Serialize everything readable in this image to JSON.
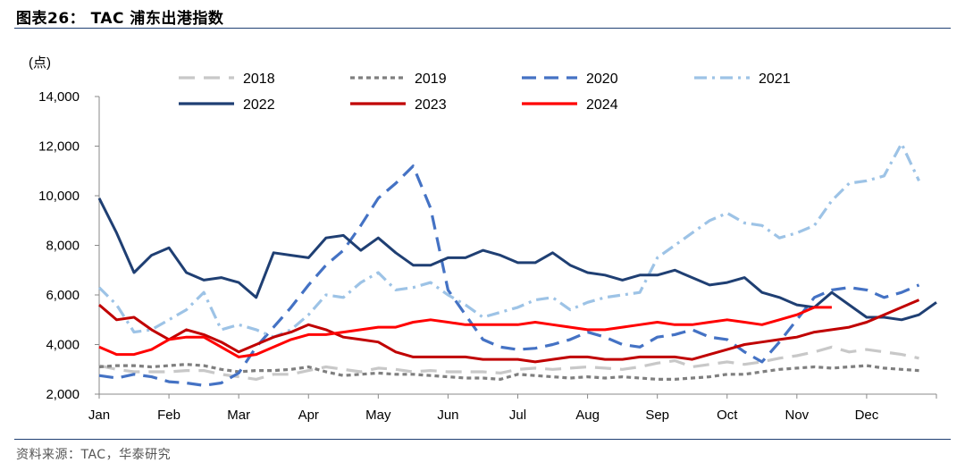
{
  "header": {
    "title": "图表26： TAC 浦东出港指数"
  },
  "footer": {
    "source": "资料来源：TAC，华泰研究"
  },
  "chart_data": {
    "type": "line",
    "unit_label": "(点)",
    "ylim": [
      2000,
      14000
    ],
    "yticks": [
      2000,
      4000,
      6000,
      8000,
      10000,
      12000,
      14000
    ],
    "ytick_labels": [
      "2,000",
      "4,000",
      "6,000",
      "8,000",
      "10,000",
      "12,000",
      "14,000"
    ],
    "x_range": [
      0,
      12
    ],
    "months": [
      "Jan",
      "Feb",
      "Mar",
      "Apr",
      "May",
      "Jun",
      "Jul",
      "Aug",
      "Sep",
      "Oct",
      "Nov",
      "Dec"
    ],
    "grid": false,
    "legend_position": "top",
    "series": [
      {
        "name": "2018",
        "color": "#c8c8c8",
        "dash": "long-dash",
        "x": [
          0,
          0.25,
          0.5,
          0.75,
          1,
          1.25,
          1.5,
          1.75,
          2,
          2.25,
          2.5,
          2.75,
          3,
          3.25,
          3.5,
          3.75,
          4,
          4.25,
          4.5,
          4.75,
          5,
          5.25,
          5.5,
          5.75,
          6,
          6.25,
          6.5,
          6.75,
          7,
          7.25,
          7.5,
          7.75,
          8,
          8.25,
          8.5,
          8.75,
          9,
          9.25,
          9.5,
          9.75,
          10,
          10.25,
          10.5,
          10.75,
          11,
          11.25,
          11.5,
          11.75
        ],
        "values": [
          3150,
          3000,
          2900,
          2900,
          2900,
          2950,
          2950,
          2800,
          2700,
          2600,
          2800,
          2800,
          2950,
          3100,
          3000,
          2900,
          3050,
          3000,
          2900,
          2950,
          2900,
          2900,
          2900,
          2850,
          3000,
          3050,
          3000,
          3050,
          3100,
          3050,
          3000,
          3100,
          3250,
          3350,
          3100,
          3200,
          3300,
          3200,
          3300,
          3450,
          3550,
          3700,
          3900,
          3700,
          3800,
          3700,
          3600,
          3450
        ]
      },
      {
        "name": "2019",
        "color": "#7f7f7f",
        "dash": "short-dash",
        "x": [
          0,
          0.25,
          0.5,
          0.75,
          1,
          1.25,
          1.5,
          1.75,
          2,
          2.25,
          2.5,
          2.75,
          3,
          3.25,
          3.5,
          3.75,
          4,
          4.25,
          4.5,
          4.75,
          5,
          5.25,
          5.5,
          5.75,
          6,
          6.25,
          6.5,
          6.75,
          7,
          7.25,
          7.5,
          7.75,
          8,
          8.25,
          8.5,
          8.75,
          9,
          9.25,
          9.5,
          9.75,
          10,
          10.25,
          10.5,
          10.75,
          11,
          11.25,
          11.5,
          11.75
        ],
        "values": [
          3100,
          3150,
          3150,
          3100,
          3150,
          3200,
          3150,
          3000,
          2900,
          2950,
          2950,
          3000,
          3100,
          2900,
          2750,
          2800,
          2850,
          2800,
          2800,
          2750,
          2700,
          2650,
          2650,
          2600,
          2800,
          2750,
          2700,
          2650,
          2700,
          2650,
          2700,
          2650,
          2600,
          2600,
          2650,
          2700,
          2800,
          2800,
          2900,
          3000,
          3050,
          3100,
          3050,
          3100,
          3150,
          3050,
          3000,
          2950
        ]
      },
      {
        "name": "2020",
        "color": "#4472c4",
        "dash": "dash",
        "x": [
          0,
          0.25,
          0.5,
          0.75,
          1,
          1.25,
          1.5,
          1.75,
          2,
          2.25,
          2.5,
          2.75,
          3,
          3.25,
          3.5,
          3.75,
          4,
          4.25,
          4.5,
          4.75,
          5,
          5.25,
          5.5,
          5.75,
          6,
          6.25,
          6.5,
          6.75,
          7,
          7.25,
          7.5,
          7.75,
          8,
          8.25,
          8.5,
          8.75,
          9,
          9.25,
          9.5,
          9.75,
          10,
          10.25,
          10.5,
          10.75,
          11,
          11.25,
          11.5,
          11.75
        ],
        "values": [
          2750,
          2650,
          2800,
          2700,
          2500,
          2450,
          2350,
          2450,
          2850,
          3900,
          4700,
          5500,
          6400,
          7200,
          7800,
          8800,
          9900,
          10500,
          11200,
          9500,
          6200,
          5200,
          4200,
          3900,
          3800,
          3850,
          4000,
          4200,
          4500,
          4300,
          4000,
          3900,
          4300,
          4400,
          4600,
          4300,
          4200,
          3700,
          3300,
          4100,
          5000,
          5900,
          6200,
          6300,
          6200,
          5900,
          6100,
          6400
        ]
      },
      {
        "name": "2021",
        "color": "#9dc3e6",
        "dash": "dash-dot",
        "x": [
          0,
          0.25,
          0.5,
          0.75,
          1,
          1.25,
          1.5,
          1.75,
          2,
          2.25,
          2.5,
          2.75,
          3,
          3.25,
          3.5,
          3.75,
          4,
          4.25,
          4.5,
          4.75,
          5,
          5.25,
          5.5,
          5.75,
          6,
          6.25,
          6.5,
          6.75,
          7,
          7.25,
          7.5,
          7.75,
          8,
          8.25,
          8.5,
          8.75,
          9,
          9.25,
          9.5,
          9.75,
          10,
          10.25,
          10.5,
          10.75,
          11,
          11.25,
          11.5,
          11.75
        ],
        "values": [
          6300,
          5600,
          4500,
          4600,
          5000,
          5400,
          6100,
          4600,
          4800,
          4600,
          4300,
          4600,
          5200,
          6000,
          5900,
          6500,
          6900,
          6200,
          6300,
          6500,
          6000,
          5600,
          5100,
          5300,
          5500,
          5800,
          5900,
          5400,
          5700,
          5900,
          6000,
          6100,
          7500,
          8000,
          8500,
          9000,
          9300,
          8900,
          8800,
          8300,
          8500,
          8800,
          9800,
          10500,
          10600,
          10800,
          12100,
          10600
        ]
      },
      {
        "name": "2022",
        "color": "#1f3f73",
        "dash": "solid",
        "x": [
          0,
          0.25,
          0.5,
          0.75,
          1,
          1.25,
          1.5,
          1.75,
          2,
          2.25,
          2.5,
          2.75,
          3,
          3.25,
          3.5,
          3.75,
          4,
          4.25,
          4.5,
          4.75,
          5,
          5.25,
          5.5,
          5.75,
          6,
          6.25,
          6.5,
          6.75,
          7,
          7.25,
          7.5,
          7.75,
          8,
          8.25,
          8.5,
          8.75,
          9,
          9.25,
          9.5,
          9.75,
          10,
          10.25,
          10.5,
          10.75,
          11,
          11.25,
          11.5,
          11.75,
          12
        ],
        "values": [
          9900,
          8500,
          6900,
          7600,
          7900,
          6900,
          6600,
          6700,
          6500,
          5900,
          7700,
          7600,
          7500,
          8300,
          8400,
          7800,
          8300,
          7700,
          7200,
          7200,
          7500,
          7500,
          7800,
          7600,
          7300,
          7300,
          7700,
          7200,
          6900,
          6800,
          6600,
          6800,
          6800,
          7000,
          6700,
          6400,
          6500,
          6700,
          6100,
          5900,
          5600,
          5500,
          6100,
          5600,
          5100,
          5100,
          5000,
          5200,
          5700
        ]
      },
      {
        "name": "2023",
        "color": "#c00000",
        "dash": "solid",
        "x": [
          0,
          0.25,
          0.5,
          0.75,
          1,
          1.25,
          1.5,
          1.75,
          2,
          2.25,
          2.5,
          2.75,
          3,
          3.25,
          3.5,
          3.75,
          4,
          4.25,
          4.5,
          4.75,
          5,
          5.25,
          5.5,
          5.75,
          6,
          6.25,
          6.5,
          6.75,
          7,
          7.25,
          7.5,
          7.75,
          8,
          8.25,
          8.5,
          8.75,
          9,
          9.25,
          9.5,
          9.75,
          10,
          10.25,
          10.5,
          10.75,
          11,
          11.25,
          11.5,
          11.75
        ],
        "values": [
          5600,
          5000,
          5100,
          4600,
          4200,
          4600,
          4400,
          4100,
          3700,
          4000,
          4300,
          4500,
          4800,
          4600,
          4300,
          4200,
          4100,
          3700,
          3500,
          3500,
          3500,
          3500,
          3400,
          3400,
          3400,
          3300,
          3400,
          3500,
          3500,
          3400,
          3400,
          3500,
          3500,
          3500,
          3400,
          3600,
          3800,
          4000,
          4100,
          4200,
          4300,
          4500,
          4600,
          4700,
          4900,
          5200,
          5500,
          5800
        ]
      },
      {
        "name": "2024",
        "color": "#ff0000",
        "dash": "solid",
        "x": [
          0,
          0.25,
          0.5,
          0.75,
          1,
          1.25,
          1.5,
          1.75,
          2,
          2.25,
          2.5,
          2.75,
          3,
          3.25,
          3.5,
          3.75,
          4,
          4.25,
          4.5,
          4.75,
          5,
          5.25,
          5.5,
          5.75,
          6,
          6.25,
          6.5,
          6.75,
          7,
          7.25,
          7.5,
          7.75,
          8,
          8.25,
          8.5,
          8.75,
          9,
          9.25,
          9.5,
          9.75,
          10,
          10.25,
          10.5
        ],
        "values": [
          3900,
          3600,
          3600,
          3800,
          4200,
          4300,
          4300,
          3900,
          3500,
          3600,
          3900,
          4200,
          4400,
          4400,
          4500,
          4600,
          4700,
          4700,
          4900,
          5000,
          4900,
          4800,
          4800,
          4800,
          4800,
          4900,
          4800,
          4700,
          4600,
          4600,
          4700,
          4800,
          4900,
          4800,
          4800,
          4900,
          5000,
          4900,
          4800,
          5000,
          5200,
          5500,
          5500
        ]
      }
    ]
  }
}
